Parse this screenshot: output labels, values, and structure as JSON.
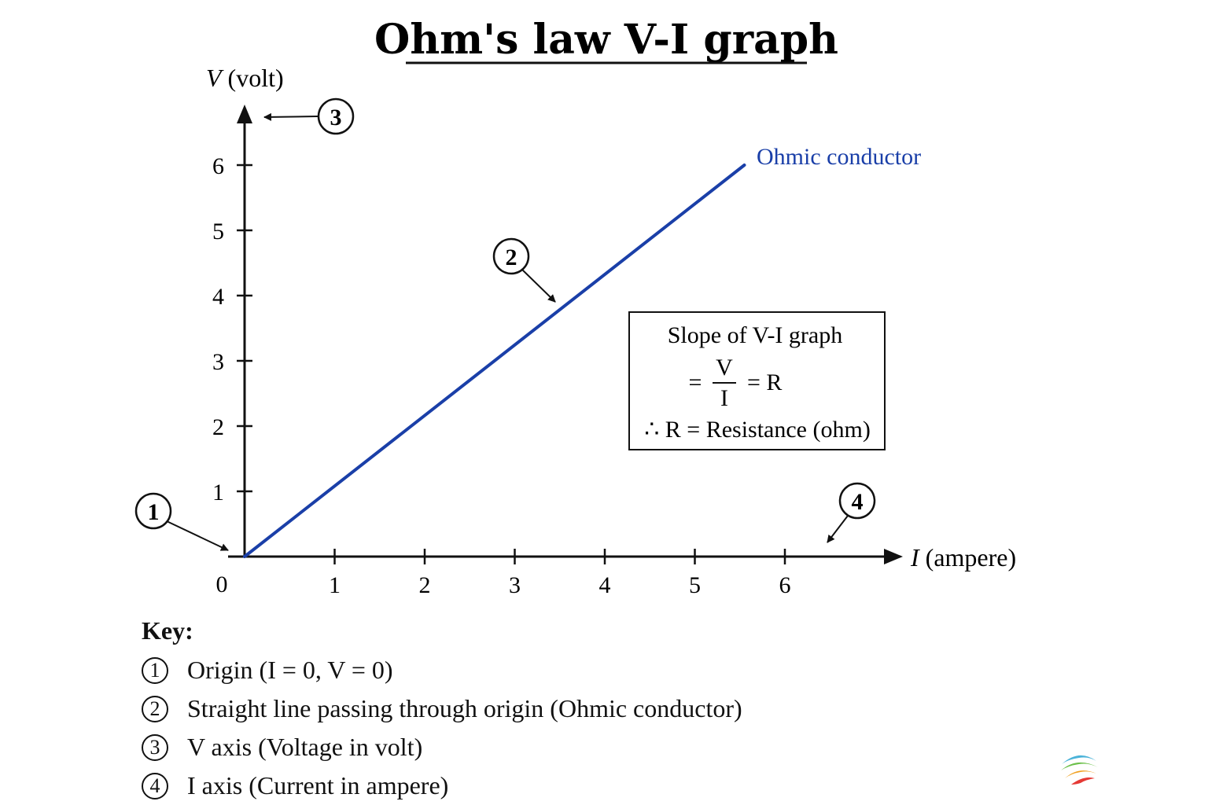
{
  "chart_data": {
    "type": "line",
    "title": "Ohm's law V-I graph",
    "xlabel": {
      "var": "I",
      "unit": " (ampere)"
    },
    "ylabel": {
      "var": "V",
      "unit": " (volt)"
    },
    "xlim": [
      0,
      7
    ],
    "ylim": [
      0,
      7
    ],
    "origin_label": "0",
    "x_ticks": [
      "1",
      "2",
      "3",
      "4",
      "5",
      "6"
    ],
    "y_ticks": [
      "1",
      "2",
      "3",
      "4",
      "5",
      "6"
    ],
    "series": [
      {
        "name": "Ohmic conductor",
        "color": "#1a3fa8",
        "x": [
          0,
          5.55
        ],
        "y": [
          0,
          6
        ]
      }
    ],
    "grid": false,
    "annotation_box": {
      "heading": "Slope of V-I graph",
      "eq_prefix": "=",
      "numerator": "V",
      "denominator": "I",
      "eq_suffix": "= R",
      "conclusion": "∴ R = Resistance (ohm)"
    },
    "callouts": [
      "1",
      "2",
      "3",
      "4"
    ]
  },
  "key": {
    "title": "Key:",
    "items": [
      {
        "num": "1",
        "text": "Origin (I = 0, V = 0)"
      },
      {
        "num": "2",
        "text": "Straight line passing through origin (Ohmic conductor)"
      },
      {
        "num": "3",
        "text": "V axis (Voltage in volt)"
      },
      {
        "num": "4",
        "text": "I axis (Current in ampere)"
      }
    ]
  },
  "logo_icon": "globe-logo-icon"
}
